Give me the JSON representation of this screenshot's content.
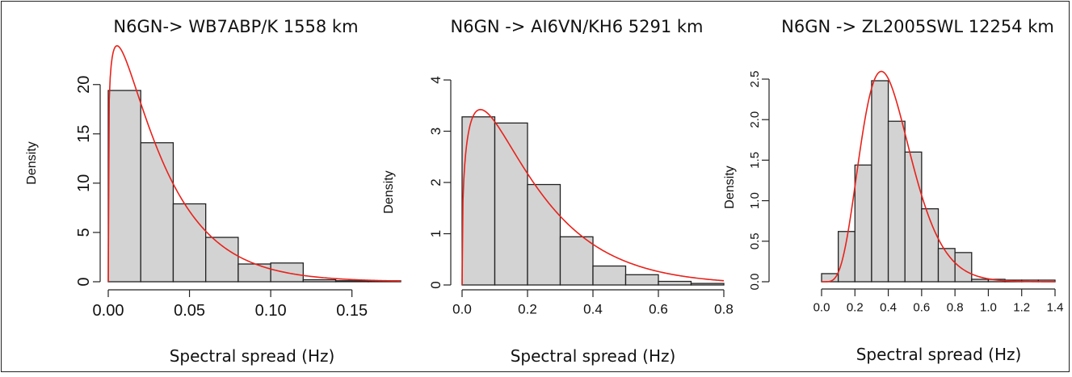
{
  "chart_data": [
    {
      "type": "bar",
      "title": "N6GN-> WB7ABP/K 1558 km",
      "xlabel": "Spectral spread (Hz)",
      "ylabel": "Density",
      "xlim": [
        0,
        0.18
      ],
      "ylim": [
        0,
        23.5
      ],
      "xticks": [
        "0.00",
        "0.05",
        "0.10",
        "0.15"
      ],
      "xtick_values": [
        0,
        0.05,
        0.1,
        0.15
      ],
      "yticks": [
        "0",
        "5",
        "10",
        "15",
        "20"
      ],
      "ytick_values": [
        0,
        5,
        10,
        15,
        20
      ],
      "bins": [
        {
          "x0": 0.0,
          "x1": 0.02,
          "value": 19.4
        },
        {
          "x0": 0.02,
          "x1": 0.04,
          "value": 14.1
        },
        {
          "x0": 0.04,
          "x1": 0.06,
          "value": 7.9
        },
        {
          "x0": 0.06,
          "x1": 0.08,
          "value": 4.5
        },
        {
          "x0": 0.08,
          "x1": 0.1,
          "value": 1.8
        },
        {
          "x0": 0.1,
          "x1": 0.12,
          "value": 1.9
        },
        {
          "x0": 0.12,
          "x1": 0.14,
          "value": 0.2
        },
        {
          "x0": 0.14,
          "x1": 0.16,
          "value": 0.1
        },
        {
          "x0": 0.16,
          "x1": 0.18,
          "value": 0.1
        }
      ],
      "fit_curve": {
        "type": "gamma",
        "shape": 1.2,
        "scale": 0.027,
        "color": "#e8221b"
      },
      "bar_color": "#d3d3d3"
    },
    {
      "type": "bar",
      "title": "N6GN -> AI6VN/KH6 5291 km",
      "xlabel": "Spectral spread (Hz)",
      "ylabel": "Density",
      "xlim": [
        0,
        0.8
      ],
      "ylim": [
        0,
        4.3
      ],
      "xticks": [
        "0.0",
        "0.2",
        "0.4",
        "0.6",
        "0.8"
      ],
      "xtick_values": [
        0,
        0.2,
        0.4,
        0.6,
        0.8
      ],
      "yticks": [
        "0",
        "1",
        "2",
        "3",
        "4"
      ],
      "ytick_values": [
        0,
        1,
        2,
        3,
        4
      ],
      "bins": [
        {
          "x0": 0.0,
          "x1": 0.1,
          "value": 3.28
        },
        {
          "x0": 0.1,
          "x1": 0.2,
          "value": 3.16
        },
        {
          "x0": 0.2,
          "x1": 0.3,
          "value": 1.96
        },
        {
          "x0": 0.3,
          "x1": 0.4,
          "value": 0.94
        },
        {
          "x0": 0.4,
          "x1": 0.5,
          "value": 0.37
        },
        {
          "x0": 0.5,
          "x1": 0.6,
          "value": 0.2
        },
        {
          "x0": 0.6,
          "x1": 0.7,
          "value": 0.07
        },
        {
          "x0": 0.7,
          "x1": 0.8,
          "value": 0.03
        }
      ],
      "fit_curve": {
        "type": "gamma",
        "shape": 1.35,
        "scale": 0.16,
        "color": "#e8221b"
      },
      "bar_color": "#d3d3d3"
    },
    {
      "type": "bar",
      "title": "N6GN -> ZL2005SWL 12254 km",
      "xlabel": "Spectral spread (Hz)",
      "ylabel": "Density",
      "xlim": [
        0,
        1.4
      ],
      "ylim": [
        0,
        2.5
      ],
      "xticks": [
        "0.0",
        "0.2",
        "0.4",
        "0.6",
        "0.8",
        "1.0",
        "1.2",
        "1.4"
      ],
      "xtick_values": [
        0,
        0.2,
        0.4,
        0.6,
        0.8,
        1.0,
        1.2,
        1.4
      ],
      "yticks": [
        "0.0",
        "0.5",
        "1.0",
        "1.5",
        "2.0",
        "2.5"
      ],
      "ytick_values": [
        0,
        0.5,
        1.0,
        1.5,
        2.0,
        2.5
      ],
      "bins": [
        {
          "x0": 0.0,
          "x1": 0.1,
          "value": 0.1
        },
        {
          "x0": 0.1,
          "x1": 0.2,
          "value": 0.62
        },
        {
          "x0": 0.2,
          "x1": 0.3,
          "value": 1.44
        },
        {
          "x0": 0.3,
          "x1": 0.4,
          "value": 2.48
        },
        {
          "x0": 0.4,
          "x1": 0.5,
          "value": 1.98
        },
        {
          "x0": 0.5,
          "x1": 0.6,
          "value": 1.6
        },
        {
          "x0": 0.6,
          "x1": 0.7,
          "value": 0.9
        },
        {
          "x0": 0.7,
          "x1": 0.8,
          "value": 0.41
        },
        {
          "x0": 0.8,
          "x1": 0.9,
          "value": 0.36
        },
        {
          "x0": 0.9,
          "x1": 1.0,
          "value": 0.03
        },
        {
          "x0": 1.0,
          "x1": 1.1,
          "value": 0.03
        },
        {
          "x0": 1.1,
          "x1": 1.2,
          "value": 0.02
        },
        {
          "x0": 1.2,
          "x1": 1.3,
          "value": 0.02
        },
        {
          "x0": 1.3,
          "x1": 1.4,
          "value": 0.02
        }
      ],
      "fit_curve": {
        "type": "gamma",
        "shape": 6.6,
        "scale": 0.064,
        "color": "#e8221b"
      },
      "bar_color": "#d3d3d3"
    }
  ]
}
